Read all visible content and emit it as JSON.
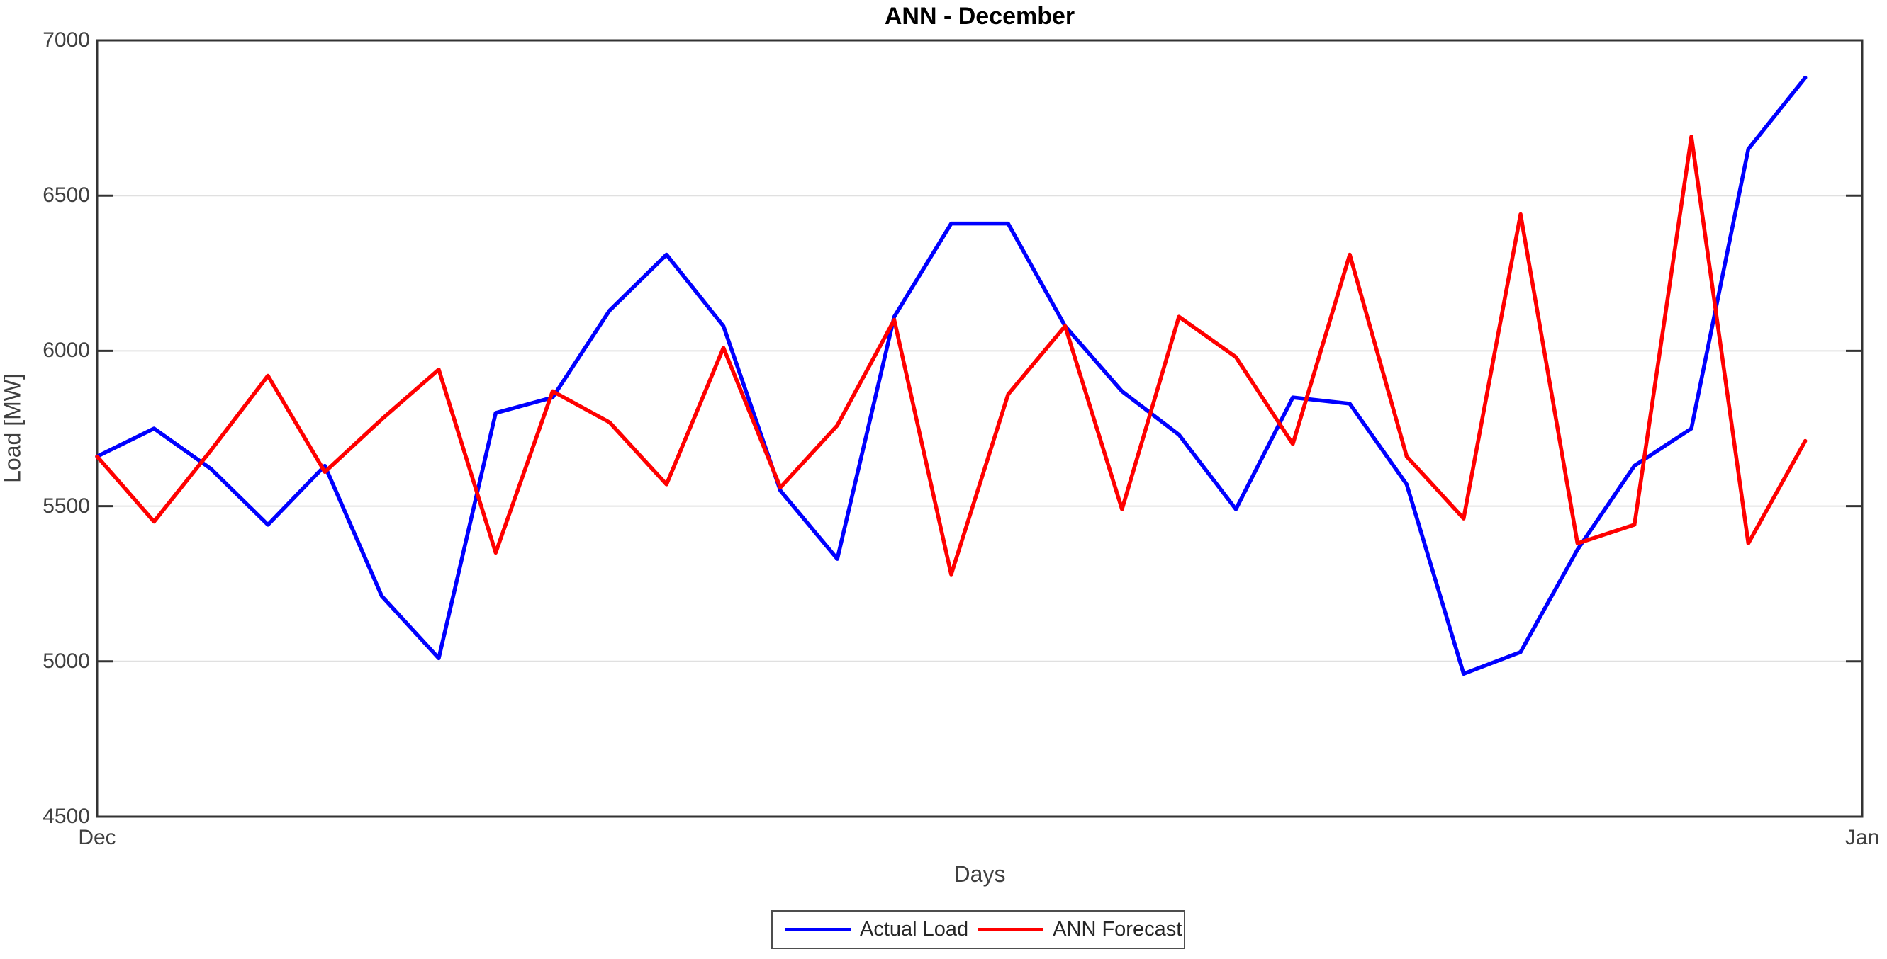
{
  "chart_data": {
    "type": "line",
    "title": "ANN - December",
    "xlabel": "Days",
    "ylabel": "Load [MW]",
    "x_tick_labels": [
      "Dec",
      "Jan"
    ],
    "x_range_days": [
      1,
      32
    ],
    "ylim": [
      4500,
      7000
    ],
    "yticks": [
      4500,
      5000,
      5500,
      6000,
      6500,
      7000
    ],
    "grid": "horizontal",
    "legend_position": "below-plot, horizontal",
    "x": [
      1,
      2,
      3,
      4,
      5,
      6,
      7,
      8,
      9,
      10,
      11,
      12,
      13,
      14,
      15,
      16,
      17,
      18,
      19,
      20,
      21,
      22,
      23,
      24,
      25,
      26,
      27,
      28,
      29,
      30,
      31
    ],
    "series": [
      {
        "name": "Actual Load",
        "color": "#0000ff",
        "values": [
          5660,
          5750,
          5620,
          5440,
          5630,
          5210,
          5010,
          5800,
          5850,
          6130,
          6310,
          6080,
          5550,
          5330,
          6110,
          6410,
          6410,
          6080,
          5870,
          5730,
          5490,
          5850,
          5830,
          5570,
          4960,
          5030,
          5360,
          5630,
          5750,
          6650,
          6880
        ]
      },
      {
        "name": "ANN Forecast",
        "color": "#ff0000",
        "values": [
          5660,
          5450,
          5680,
          5920,
          5610,
          5780,
          5940,
          5350,
          5870,
          5770,
          5570,
          6010,
          5560,
          5760,
          6100,
          5280,
          5860,
          6080,
          5490,
          6110,
          5980,
          5700,
          6310,
          5660,
          5460,
          6440,
          5380,
          5440,
          6690,
          5380,
          5710
        ]
      }
    ],
    "colors": {
      "axis": "#333333",
      "grid": "#e0e0e0",
      "text": "#404040",
      "background": "#ffffff"
    }
  },
  "legend": {
    "labels": [
      "Actual Load",
      "ANN Forecast"
    ]
  }
}
